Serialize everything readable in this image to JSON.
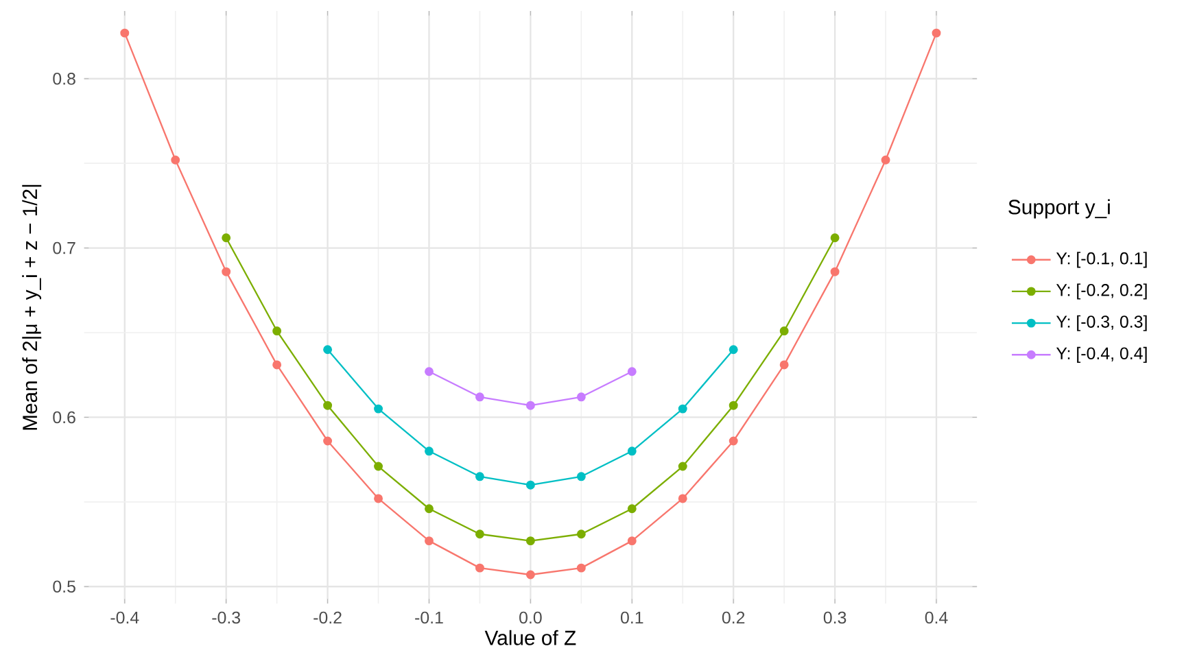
{
  "chart_data": {
    "type": "line",
    "xlabel": "Value of Z",
    "ylabel": "Mean of 2|μ + y_i + z − 1/2|",
    "legend_title": "Support y_i",
    "xlim": [
      -0.44,
      0.44
    ],
    "ylim": [
      0.49,
      0.84
    ],
    "xticks": [
      -0.4,
      -0.3,
      -0.2,
      -0.1,
      {
        "value": 0,
        "label": "0.0"
      },
      0.1,
      0.2,
      0.3,
      0.4
    ],
    "yticks": [
      0.5,
      0.6,
      0.7,
      0.8
    ],
    "grid": true,
    "legend": "right",
    "marker": "circle",
    "line_style": "solid",
    "series": [
      {
        "name": "Y: [-0.1, 0.1]",
        "color": "#f8766d",
        "x": [
          -0.4,
          -0.35,
          -0.3,
          -0.25,
          -0.2,
          -0.15,
          -0.1,
          -0.05,
          0.0,
          0.05,
          0.1,
          0.15,
          0.2,
          0.25,
          0.3,
          0.35,
          0.4
        ],
        "values": [
          0.827,
          0.752,
          0.686,
          0.631,
          0.586,
          0.552,
          0.527,
          0.511,
          0.507,
          0.511,
          0.527,
          0.552,
          0.586,
          0.631,
          0.686,
          0.752,
          0.827
        ]
      },
      {
        "name": "Y: [-0.2, 0.2]",
        "color": "#7cae00",
        "x": [
          -0.3,
          -0.25,
          -0.2,
          -0.15,
          -0.1,
          -0.05,
          0.0,
          0.05,
          0.1,
          0.15,
          0.2,
          0.25,
          0.3
        ],
        "values": [
          0.706,
          0.651,
          0.607,
          0.571,
          0.546,
          0.531,
          0.527,
          0.531,
          0.546,
          0.571,
          0.607,
          0.651,
          0.706
        ]
      },
      {
        "name": "Y: [-0.3, 0.3]",
        "color": "#00bfc4",
        "x": [
          -0.2,
          -0.15,
          -0.1,
          -0.05,
          0.0,
          0.05,
          0.1,
          0.15,
          0.2
        ],
        "values": [
          0.64,
          0.605,
          0.58,
          0.565,
          0.56,
          0.565,
          0.58,
          0.605,
          0.64
        ]
      },
      {
        "name": "Y: [-0.4, 0.4]",
        "color": "#c77cff",
        "x": [
          -0.1,
          -0.05,
          0.0,
          0.05,
          0.1
        ],
        "values": [
          0.627,
          0.612,
          0.607,
          0.612,
          0.627
        ]
      }
    ]
  }
}
